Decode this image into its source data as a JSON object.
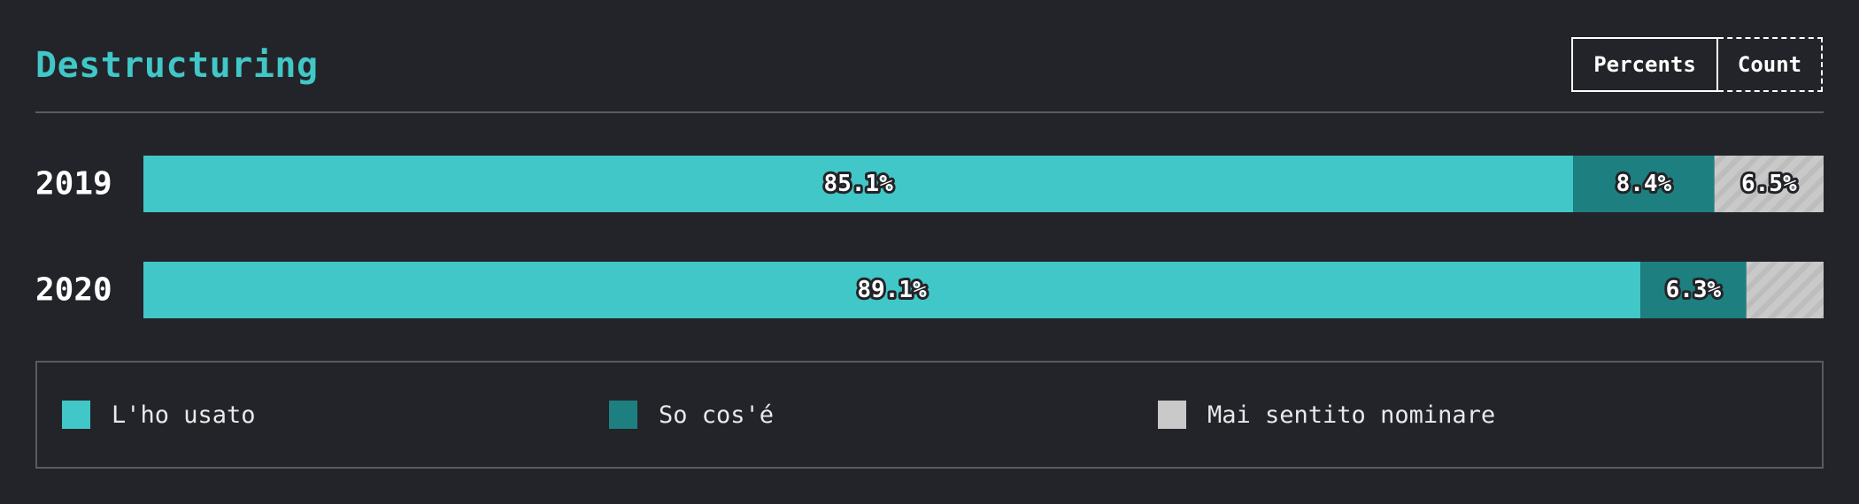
{
  "header": {
    "title": "Destructuring",
    "toggle": {
      "percents_label": "Percents",
      "count_label": "Count"
    }
  },
  "colors": {
    "used": "#41c7c7",
    "know": "#1d7f80",
    "never": "#c9c9c9",
    "background": "#232429"
  },
  "chart_data": {
    "type": "bar",
    "orientation": "horizontal",
    "stacked": true,
    "categories": [
      "2019",
      "2020"
    ],
    "series": [
      {
        "name": "L'ho usato",
        "values": [
          85.1,
          89.1
        ],
        "labels": [
          "85.1%",
          "89.1%"
        ]
      },
      {
        "name": "So cos'é",
        "values": [
          8.4,
          6.3
        ],
        "labels": [
          "8.4%",
          "6.3%"
        ]
      },
      {
        "name": "Mai sentito nominare",
        "values": [
          6.5,
          4.6
        ],
        "labels": [
          "6.5%",
          ""
        ]
      }
    ],
    "xlim": [
      0,
      100
    ],
    "grid": false,
    "legend": "bottom"
  }
}
